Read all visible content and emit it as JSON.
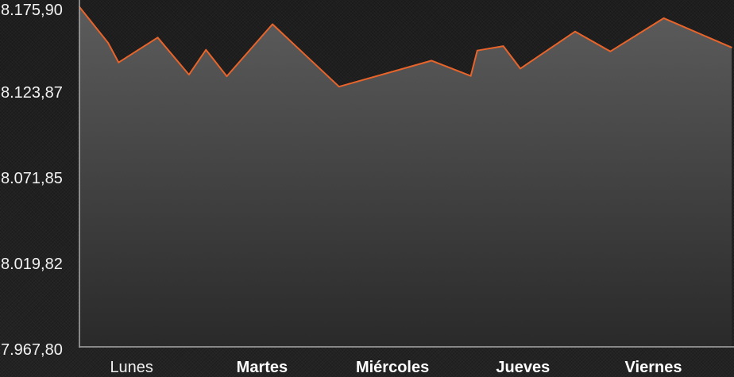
{
  "chart_data": {
    "type": "area",
    "title": "",
    "xlabel": "",
    "ylabel": "",
    "ylim": [
      7967.8,
      8175.9
    ],
    "yticks": [
      "8.175,90",
      "8.123,87",
      "8.071,85",
      "8.019,82",
      "7.967,80"
    ],
    "ytick_values": [
      8175.9,
      8123.87,
      8071.85,
      8019.82,
      7967.8
    ],
    "categories": [
      "Lunes",
      "Martes",
      "Miércoles",
      "Jueves",
      "Viernes"
    ],
    "category_bold": [
      false,
      true,
      true,
      true,
      true
    ],
    "xlim": [
      0,
      5
    ],
    "series": [
      {
        "x": [
          0.0,
          0.22,
          0.3,
          0.6,
          0.84,
          0.97,
          1.13,
          1.48,
          1.99,
          2.7,
          3.0,
          3.05,
          3.25,
          3.38,
          3.8,
          4.07,
          4.48,
          5.0
        ],
        "values": [
          8174.1,
          8152.3,
          8140.4,
          8155.5,
          8133.0,
          8148.1,
          8132.0,
          8163.6,
          8125.7,
          8141.5,
          8132.2,
          8147.6,
          8150.3,
          8136.7,
          8159.2,
          8147.1,
          8167.3,
          8149.5
        ]
      }
    ],
    "colors": {
      "line": "#e8642a",
      "area_top": "#5f5f5f",
      "area_bottom": "#2a2a2a",
      "axis": "#a8a8a8",
      "text": "#f2f2f2"
    },
    "grid": false
  }
}
